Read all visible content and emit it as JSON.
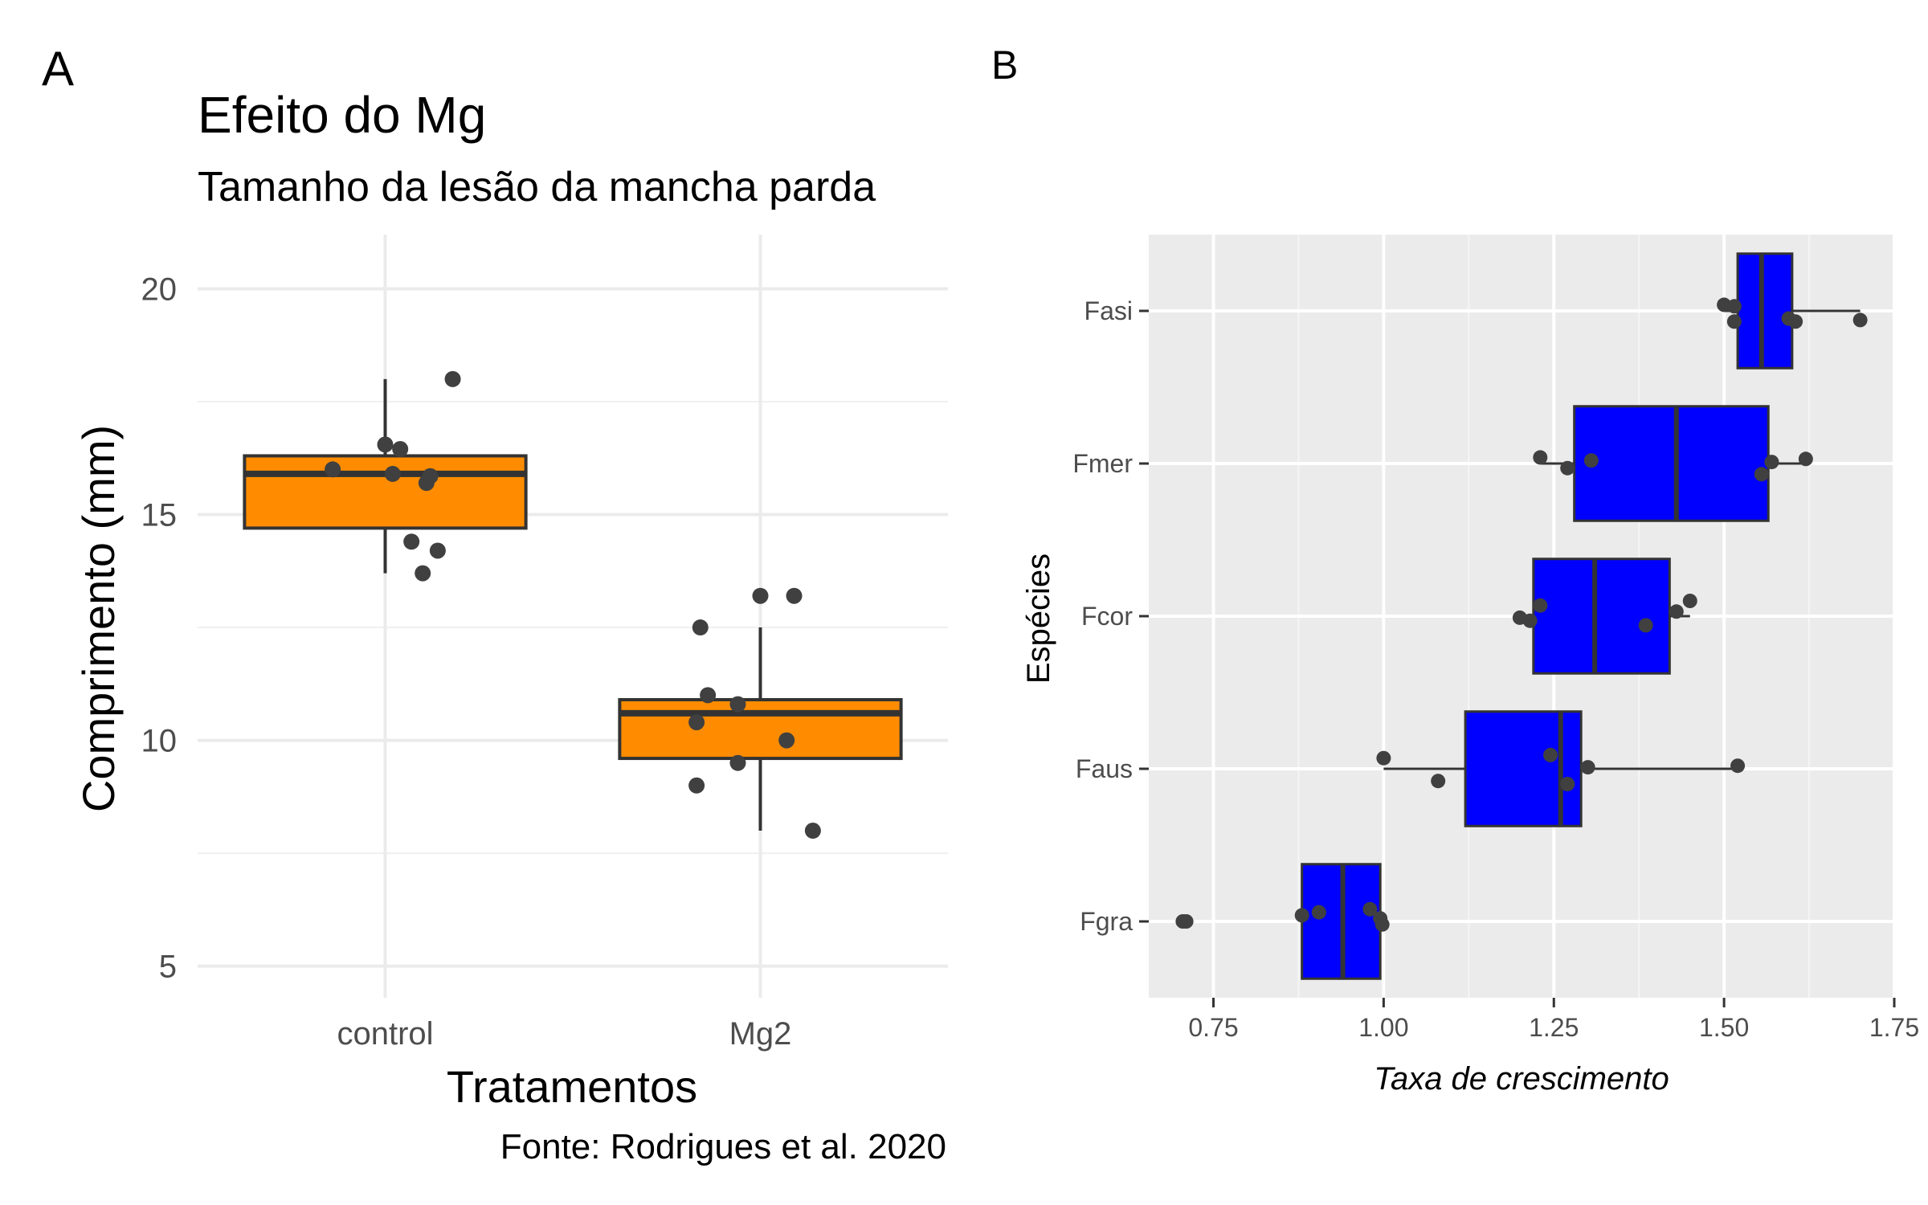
{
  "panels": {
    "a_tag": "A",
    "b_tag": "B"
  },
  "chart_data": [
    {
      "type": "box",
      "title": "Efeito do Mg",
      "subtitle": "Tamanho da lesão da mancha parda",
      "caption": "Fonte: Rodrigues et al. 2020",
      "xlabel": "Tratamentos",
      "ylabel": "Comprimento (mm)",
      "categories": [
        "control",
        "Mg2"
      ],
      "ylim": [
        4.3,
        21.2
      ],
      "yticks": [
        5,
        10,
        15,
        20
      ],
      "ytick_labels": [
        "5",
        "10",
        "15",
        "20"
      ],
      "grid": true,
      "theme": "minimal",
      "box_color": "#ff8c00",
      "point_color": "#404040",
      "boxes": [
        {
          "category": "control",
          "min": 13.7,
          "q1": 14.7,
          "median": 15.9,
          "q3": 16.3,
          "max": 18.0
        },
        {
          "category": "Mg2",
          "min": 8.0,
          "q1": 9.6,
          "median": 10.6,
          "q3": 10.9,
          "max": 12.5
        }
      ],
      "points": [
        {
          "category": "control",
          "values": [
            18.0,
            16.55,
            16.45,
            16.0,
            15.9,
            15.85,
            15.7,
            14.4,
            14.2,
            13.7
          ],
          "jitter": [
            0.18,
            0.0,
            0.04,
            -0.14,
            0.02,
            0.12,
            0.11,
            0.07,
            0.14,
            0.1
          ]
        },
        {
          "category": "Mg2",
          "values": [
            13.2,
            13.2,
            12.5,
            11.0,
            10.8,
            10.4,
            10.0,
            9.5,
            9.0,
            8.0
          ],
          "jitter": [
            0.0,
            0.09,
            -0.16,
            -0.14,
            -0.06,
            -0.17,
            0.07,
            -0.06,
            -0.17,
            0.14
          ]
        }
      ]
    },
    {
      "type": "box",
      "orientation": "horizontal",
      "xlabel": "Taxa de crescimento",
      "ylabel": "Espécies",
      "categories": [
        "Fgra",
        "Faus",
        "Fcor",
        "Fmer",
        "Fasi"
      ],
      "xlim": [
        0.655,
        1.75
      ],
      "xticks": [
        0.75,
        1.0,
        1.25,
        1.5,
        1.75
      ],
      "xtick_labels": [
        "0.75",
        "1.00",
        "1.25",
        "1.50",
        "1.75"
      ],
      "grid": true,
      "theme": "grey",
      "box_color": "#0000ff",
      "point_color": "#404040",
      "boxes": [
        {
          "category": "Fgra",
          "min": 0.88,
          "q1": 0.88,
          "median": 0.94,
          "q3": 0.995,
          "max": 0.995
        },
        {
          "category": "Faus",
          "min": 1.0,
          "q1": 1.12,
          "median": 1.26,
          "q3": 1.29,
          "max": 1.52
        },
        {
          "category": "Fcor",
          "min": 1.2,
          "q1": 1.22,
          "median": 1.31,
          "q3": 1.42,
          "max": 1.45
        },
        {
          "category": "Fmer",
          "min": 1.23,
          "q1": 1.28,
          "median": 1.43,
          "q3": 1.565,
          "max": 1.62
        },
        {
          "category": "Fasi",
          "min": 1.5,
          "q1": 1.52,
          "median": 1.555,
          "q3": 1.6,
          "max": 1.7
        }
      ],
      "points": [
        {
          "category": "Fgra",
          "values": [
            0.705,
            0.71,
            0.88,
            0.905,
            0.98,
            0.995,
            0.998
          ],
          "jitter": [
            0.0,
            0.0,
            -0.04,
            -0.06,
            -0.08,
            -0.02,
            0.02
          ]
        },
        {
          "category": "Faus",
          "values": [
            1.0,
            1.08,
            1.245,
            1.27,
            1.3,
            1.52
          ],
          "jitter": [
            -0.07,
            0.08,
            -0.09,
            0.1,
            -0.01,
            -0.02
          ]
        },
        {
          "category": "Fcor",
          "values": [
            1.2,
            1.215,
            1.23,
            1.385,
            1.43,
            1.45
          ],
          "jitter": [
            0.01,
            0.03,
            -0.07,
            0.06,
            -0.03,
            -0.1
          ]
        },
        {
          "category": "Fmer",
          "values": [
            1.23,
            1.27,
            1.305,
            1.555,
            1.57,
            1.62
          ],
          "jitter": [
            -0.04,
            0.03,
            -0.02,
            0.07,
            -0.01,
            -0.03
          ]
        },
        {
          "category": "Fasi",
          "values": [
            1.5,
            1.515,
            1.515,
            1.595,
            1.605,
            1.7
          ],
          "jitter": [
            -0.04,
            -0.03,
            0.07,
            0.05,
            0.07,
            0.06
          ]
        }
      ]
    }
  ]
}
